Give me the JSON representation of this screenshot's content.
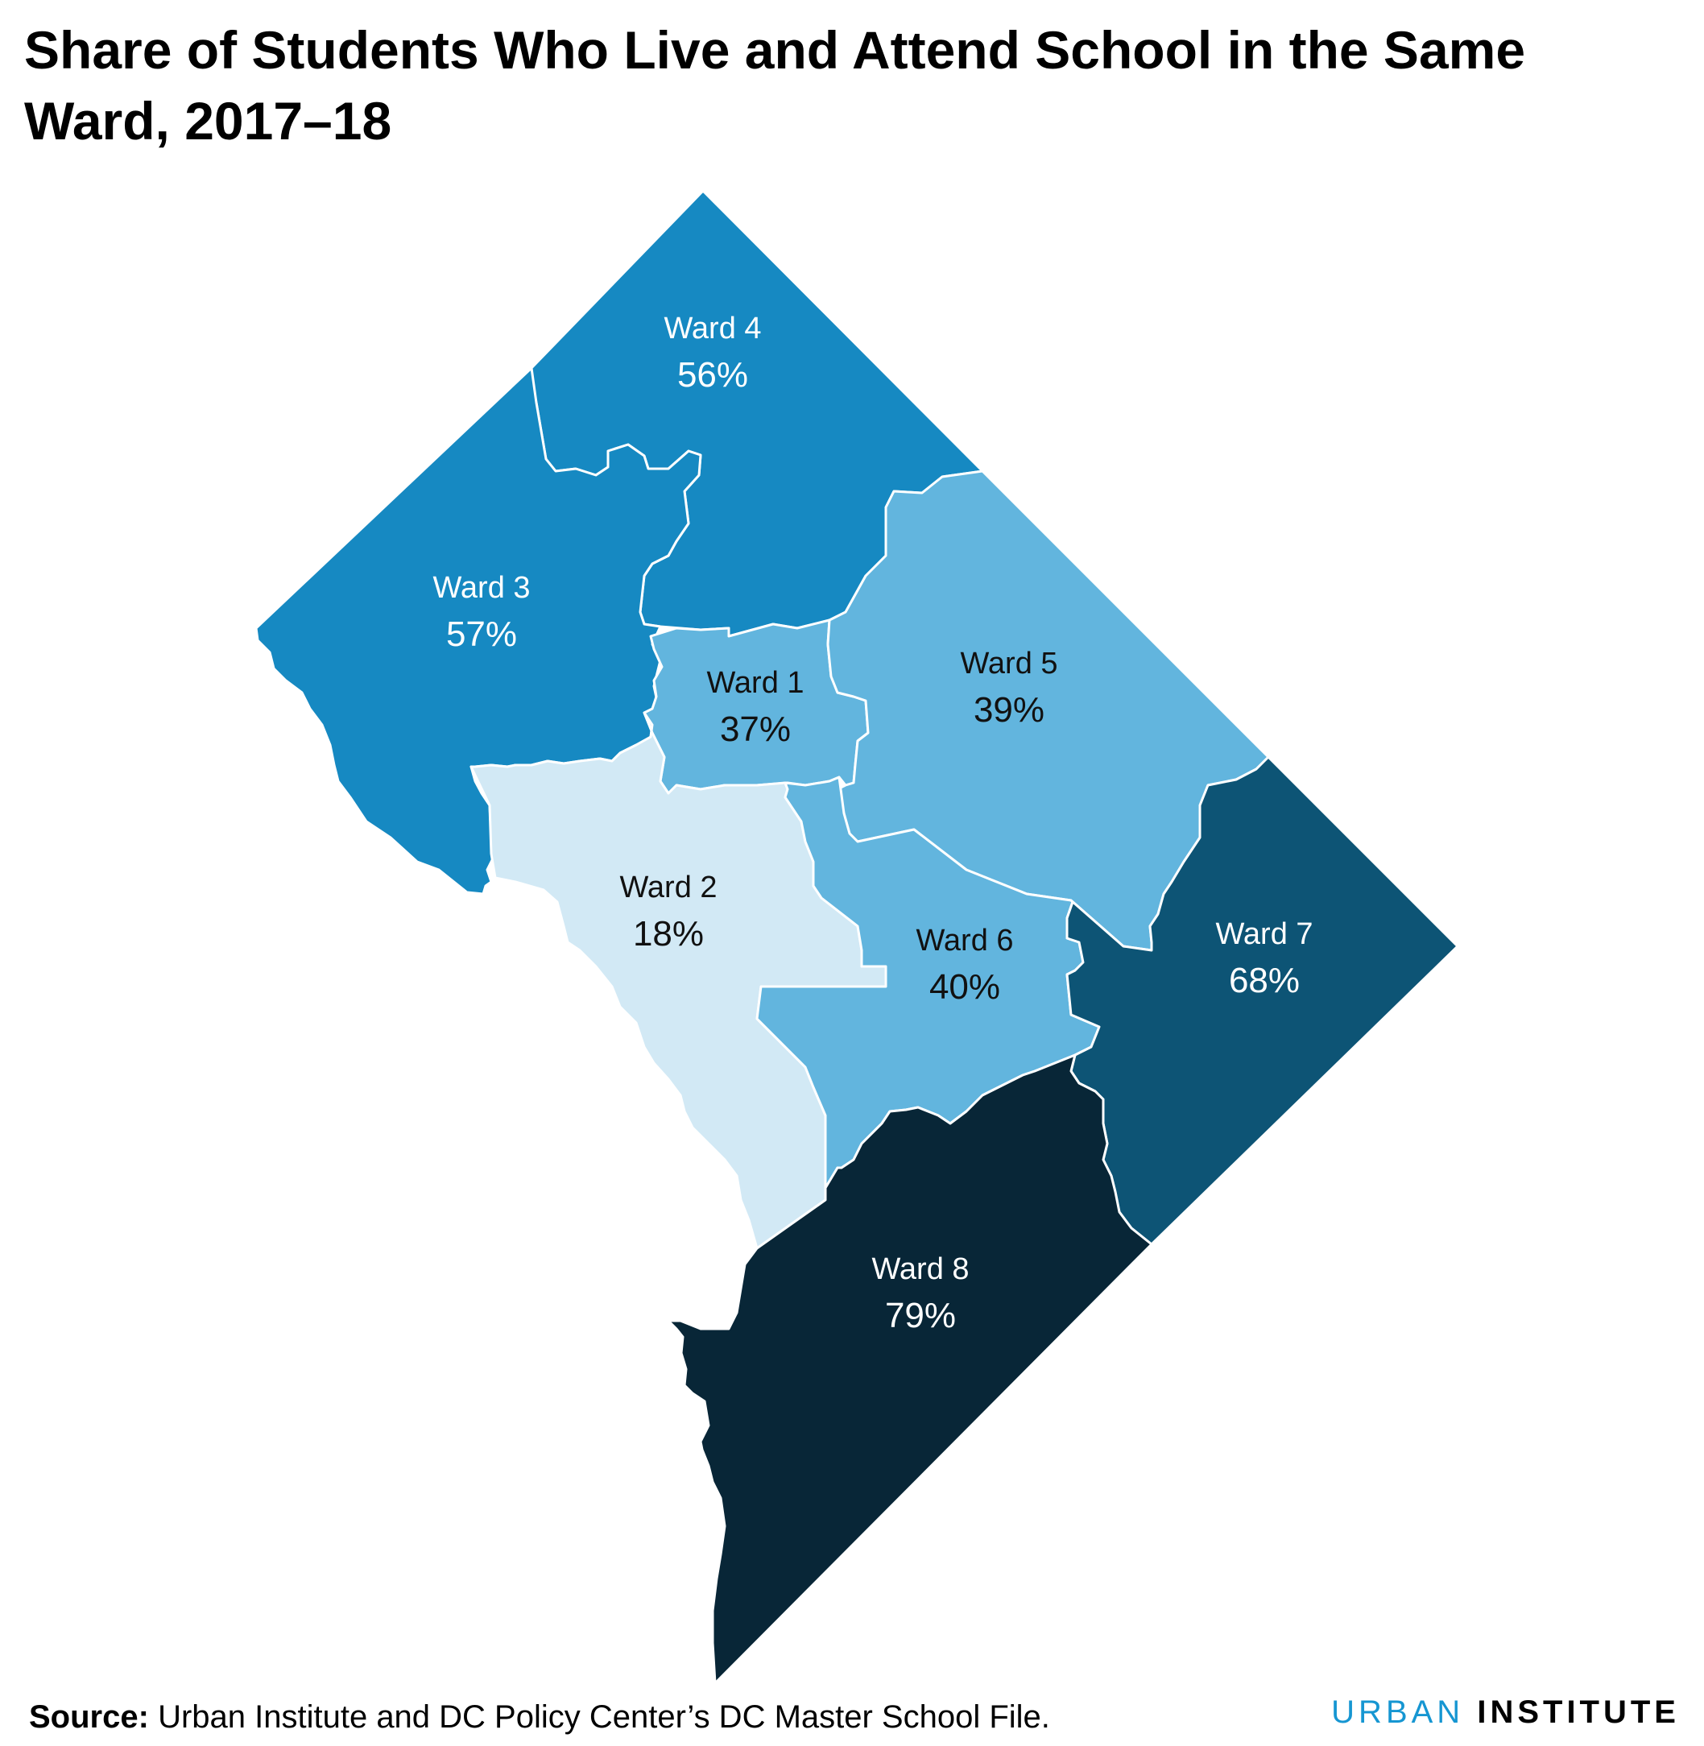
{
  "title": "Share of Students Who Live and Attend School in the Same Ward, 2017–18",
  "source": {
    "label": "Source:",
    "text": "Urban Institute and DC Policy Center’s DC Master School File."
  },
  "logo": {
    "word1": "URBAN",
    "word2": "INSTITUTE"
  },
  "colors": {
    "lightest": "#d2e9f5",
    "light": "#62b5de",
    "medium": "#1689c2",
    "dark": "#0d5475",
    "darkest": "#082637",
    "label_on_dark": "#ffffff",
    "label_on_light": "#111111",
    "border": "#ffffff"
  },
  "wards": [
    {
      "name": "Ward 1",
      "value": "37%",
      "fill": "#62b5de",
      "text": "#111111"
    },
    {
      "name": "Ward 2",
      "value": "18%",
      "fill": "#d2e9f5",
      "text": "#111111"
    },
    {
      "name": "Ward 3",
      "value": "57%",
      "fill": "#1689c2",
      "text": "#ffffff"
    },
    {
      "name": "Ward 4",
      "value": "56%",
      "fill": "#1689c2",
      "text": "#ffffff"
    },
    {
      "name": "Ward 5",
      "value": "39%",
      "fill": "#62b5de",
      "text": "#111111"
    },
    {
      "name": "Ward 6",
      "value": "40%",
      "fill": "#62b5de",
      "text": "#111111"
    },
    {
      "name": "Ward 7",
      "value": "68%",
      "fill": "#0d5475",
      "text": "#ffffff"
    },
    {
      "name": "Ward 8",
      "value": "79%",
      "fill": "#082637",
      "text": "#ffffff"
    }
  ]
}
